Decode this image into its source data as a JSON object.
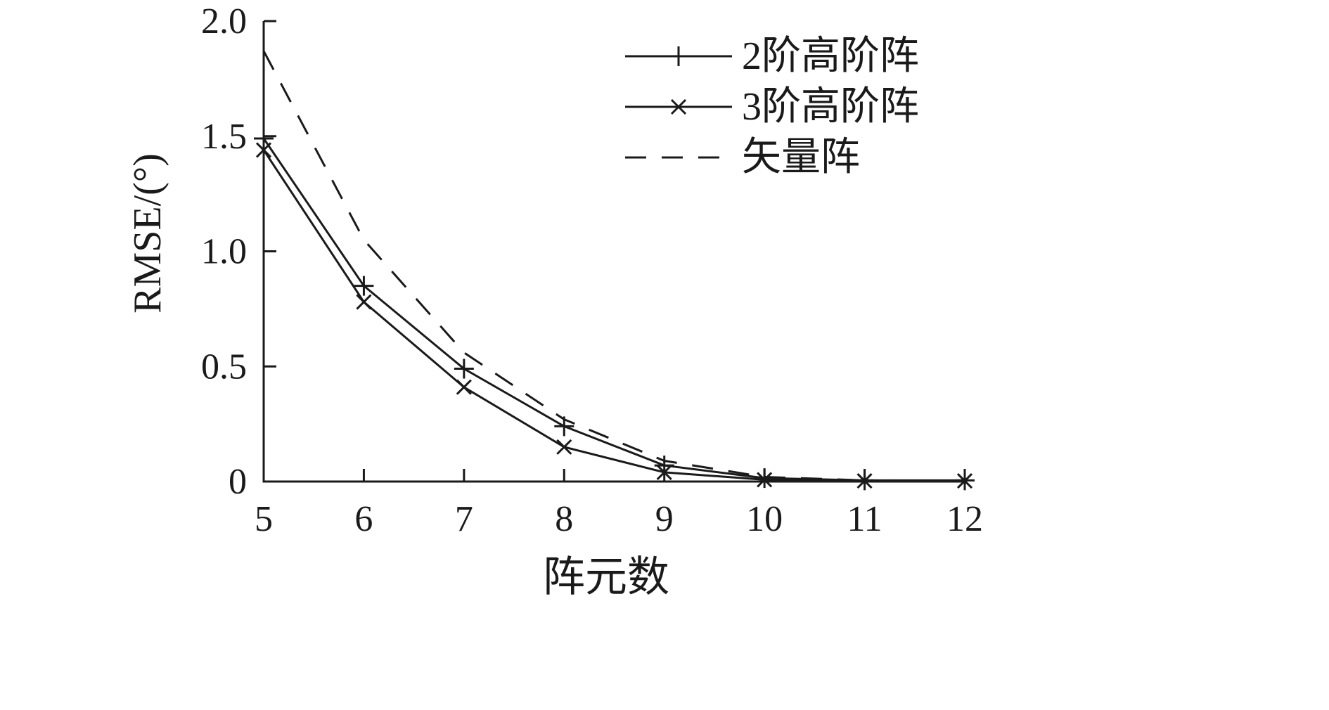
{
  "figure": {
    "background": "#ffffff",
    "ink": "#1a1a1a"
  },
  "chart_data": {
    "type": "line",
    "title": "",
    "xlabel": "阵元数",
    "ylabel": "RMSE/(°)",
    "xlim": [
      5,
      12
    ],
    "ylim": [
      0,
      2.0
    ],
    "xticks": [
      5,
      6,
      7,
      8,
      9,
      10,
      11,
      12
    ],
    "xtick_labels": [
      "5",
      "6",
      "7",
      "8",
      "9",
      "10",
      "11",
      "12"
    ],
    "yticks": [
      0,
      0.5,
      1.0,
      1.5,
      2.0
    ],
    "ytick_labels": [
      "0",
      "0.5",
      "1.0",
      "1.5",
      "2.0"
    ],
    "grid": false,
    "legend_position": "upper-right-inside",
    "x": [
      5,
      6,
      7,
      8,
      9,
      10,
      11,
      12
    ],
    "series": [
      {
        "name": "2阶高阶阵",
        "line": "solid",
        "marker": "plus",
        "values": [
          1.49,
          0.85,
          0.49,
          0.24,
          0.07,
          0.015,
          0.005,
          0.005
        ]
      },
      {
        "name": "3阶高阶阵",
        "line": "solid",
        "marker": "x",
        "values": [
          1.44,
          0.78,
          0.41,
          0.15,
          0.04,
          0.008,
          0.003,
          0.003
        ]
      },
      {
        "name": "矢量阵",
        "line": "dashed",
        "marker": "none",
        "values": [
          1.87,
          1.05,
          0.56,
          0.27,
          0.09,
          0.02,
          0.005,
          0.002
        ]
      }
    ]
  }
}
